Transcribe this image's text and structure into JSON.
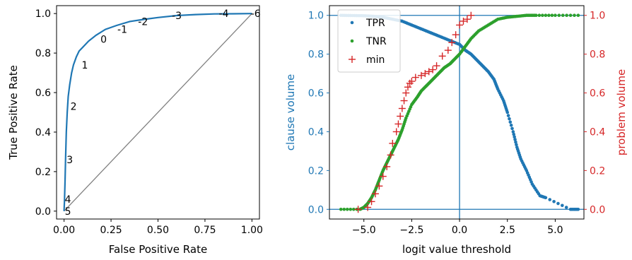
{
  "chart_data": [
    {
      "type": "line",
      "xlabel": "False Positive Rate",
      "ylabel": "True Positive Rate",
      "xlim": [
        -0.04,
        1.04
      ],
      "ylim": [
        -0.04,
        1.04
      ],
      "xticks": [
        "0.00",
        "0.25",
        "0.50",
        "0.75",
        "1.00"
      ],
      "yticks": [
        "0.0",
        "0.2",
        "0.4",
        "0.6",
        "0.8",
        "1.0"
      ],
      "series": [
        {
          "color": "#1f77b4",
          "x": [
            0.0,
            0.002,
            0.005,
            0.008,
            0.012,
            0.017,
            0.022,
            0.03,
            0.04,
            0.05,
            0.065,
            0.08,
            0.1,
            0.13,
            0.17,
            0.22,
            0.28,
            0.35,
            0.42,
            0.5,
            0.6,
            0.7,
            0.8,
            0.9,
            1.0
          ],
          "y": [
            0.0,
            0.05,
            0.15,
            0.27,
            0.4,
            0.5,
            0.58,
            0.64,
            0.7,
            0.74,
            0.78,
            0.81,
            0.83,
            0.86,
            0.89,
            0.92,
            0.94,
            0.96,
            0.97,
            0.98,
            0.99,
            0.995,
            0.998,
            0.999,
            1.0
          ]
        },
        {
          "color": "#808080",
          "x": [
            0,
            1
          ],
          "y": [
            0,
            1
          ]
        }
      ],
      "annotations": [
        {
          "text": "5",
          "x": 0.0,
          "y": 0.0
        },
        {
          "text": "4",
          "x": 0.0,
          "y": 0.06
        },
        {
          "text": "3",
          "x": 0.01,
          "y": 0.26
        },
        {
          "text": "2",
          "x": 0.03,
          "y": 0.53
        },
        {
          "text": "1",
          "x": 0.09,
          "y": 0.74
        },
        {
          "text": "0",
          "x": 0.19,
          "y": 0.87
        },
        {
          "text": "-1",
          "x": 0.28,
          "y": 0.92
        },
        {
          "text": "-2",
          "x": 0.39,
          "y": 0.96
        },
        {
          "text": "-3",
          "x": 0.57,
          "y": 0.99
        },
        {
          "text": "-4",
          "x": 0.82,
          "y": 1.0
        },
        {
          "text": "-6",
          "x": 0.99,
          "y": 1.0
        }
      ]
    },
    {
      "type": "scatter",
      "xlabel": "logit value threshold",
      "ylabel": "clause volume",
      "y2label": "problem volume",
      "xlim": [
        -6.8,
        6.5
      ],
      "ylim": [
        -0.05,
        1.05
      ],
      "y2lim": [
        -0.05,
        1.05
      ],
      "xticks": [
        "−5.0",
        "−2.5",
        "0.0",
        "2.5",
        "5.0"
      ],
      "yticks": [
        "0.0",
        "0.2",
        "0.4",
        "0.6",
        "0.8",
        "1.0"
      ],
      "y2ticks": [
        "0.0",
        "0.2",
        "0.4",
        "0.6",
        "0.8",
        "1.0"
      ],
      "legend_position": "upper-left",
      "reference_lines": {
        "vertical_x": 0,
        "horizontal_y": [
          0,
          1
        ]
      },
      "series": [
        {
          "name": "TPR",
          "color": "#1f77b4",
          "marker": "dot",
          "x": [
            -6.2,
            -5.6,
            -5.0,
            -4.5,
            -4.0,
            -3.5,
            -3.0,
            -2.5,
            -2.0,
            -1.5,
            -1.0,
            -0.5,
            0.0,
            0.3,
            0.6,
            0.9,
            1.2,
            1.5,
            1.8,
            2.0,
            2.3,
            2.5,
            2.8,
            3.0,
            3.2,
            3.5,
            3.8,
            4.2,
            4.5,
            5.8,
            6.2
          ],
          "y": [
            1.0,
            0.999,
            0.998,
            0.995,
            0.99,
            0.98,
            0.97,
            0.95,
            0.93,
            0.91,
            0.89,
            0.87,
            0.85,
            0.82,
            0.8,
            0.77,
            0.74,
            0.71,
            0.67,
            0.62,
            0.56,
            0.5,
            0.4,
            0.32,
            0.26,
            0.2,
            0.13,
            0.07,
            0.06,
            0.0,
            0.0
          ]
        },
        {
          "name": "TNR",
          "color": "#2ca02c",
          "marker": "dot",
          "x": [
            -6.2,
            -5.2,
            -5.0,
            -4.8,
            -4.6,
            -4.4,
            -4.2,
            -4.0,
            -3.8,
            -3.6,
            -3.4,
            -3.2,
            -3.0,
            -2.8,
            -2.5,
            -2.2,
            -2.0,
            -1.7,
            -1.4,
            -1.1,
            -0.8,
            -0.5,
            -0.3,
            0.0,
            0.3,
            0.6,
            1.0,
            1.5,
            2.0,
            2.5,
            3.0,
            3.5,
            4.0,
            5.0,
            6.2
          ],
          "y": [
            0.0,
            0.0,
            0.01,
            0.03,
            0.06,
            0.1,
            0.15,
            0.2,
            0.24,
            0.28,
            0.32,
            0.36,
            0.41,
            0.47,
            0.54,
            0.58,
            0.61,
            0.64,
            0.67,
            0.7,
            0.73,
            0.75,
            0.77,
            0.8,
            0.84,
            0.88,
            0.92,
            0.95,
            0.98,
            0.99,
            0.995,
            1.0,
            1.0,
            1.0,
            1.0
          ]
        },
        {
          "name": "min",
          "color": "#d62728",
          "marker": "plus",
          "axis": "right",
          "x": [
            -5.3,
            -4.8,
            -4.6,
            -4.4,
            -4.2,
            -4.0,
            -3.8,
            -3.6,
            -3.5,
            -3.3,
            -3.2,
            -3.1,
            -3.0,
            -2.9,
            -2.8,
            -2.7,
            -2.6,
            -2.5,
            -2.3,
            -2.0,
            -1.8,
            -1.6,
            -1.4,
            -1.2,
            -0.9,
            -0.6,
            -0.4,
            -0.2,
            0.0,
            0.2,
            0.4,
            0.6
          ],
          "y": [
            0.0,
            0.01,
            0.04,
            0.08,
            0.12,
            0.17,
            0.22,
            0.28,
            0.34,
            0.4,
            0.44,
            0.48,
            0.52,
            0.56,
            0.6,
            0.63,
            0.65,
            0.66,
            0.68,
            0.69,
            0.7,
            0.71,
            0.72,
            0.74,
            0.79,
            0.82,
            0.86,
            0.9,
            0.95,
            0.97,
            0.98,
            1.0
          ]
        }
      ]
    }
  ],
  "colors": {
    "tpr": "#1f77b4",
    "tnr": "#2ca02c",
    "min": "#d62728",
    "diagonal": "#808080",
    "clause_axis": "#1f77b4",
    "problem_axis": "#d62728"
  }
}
